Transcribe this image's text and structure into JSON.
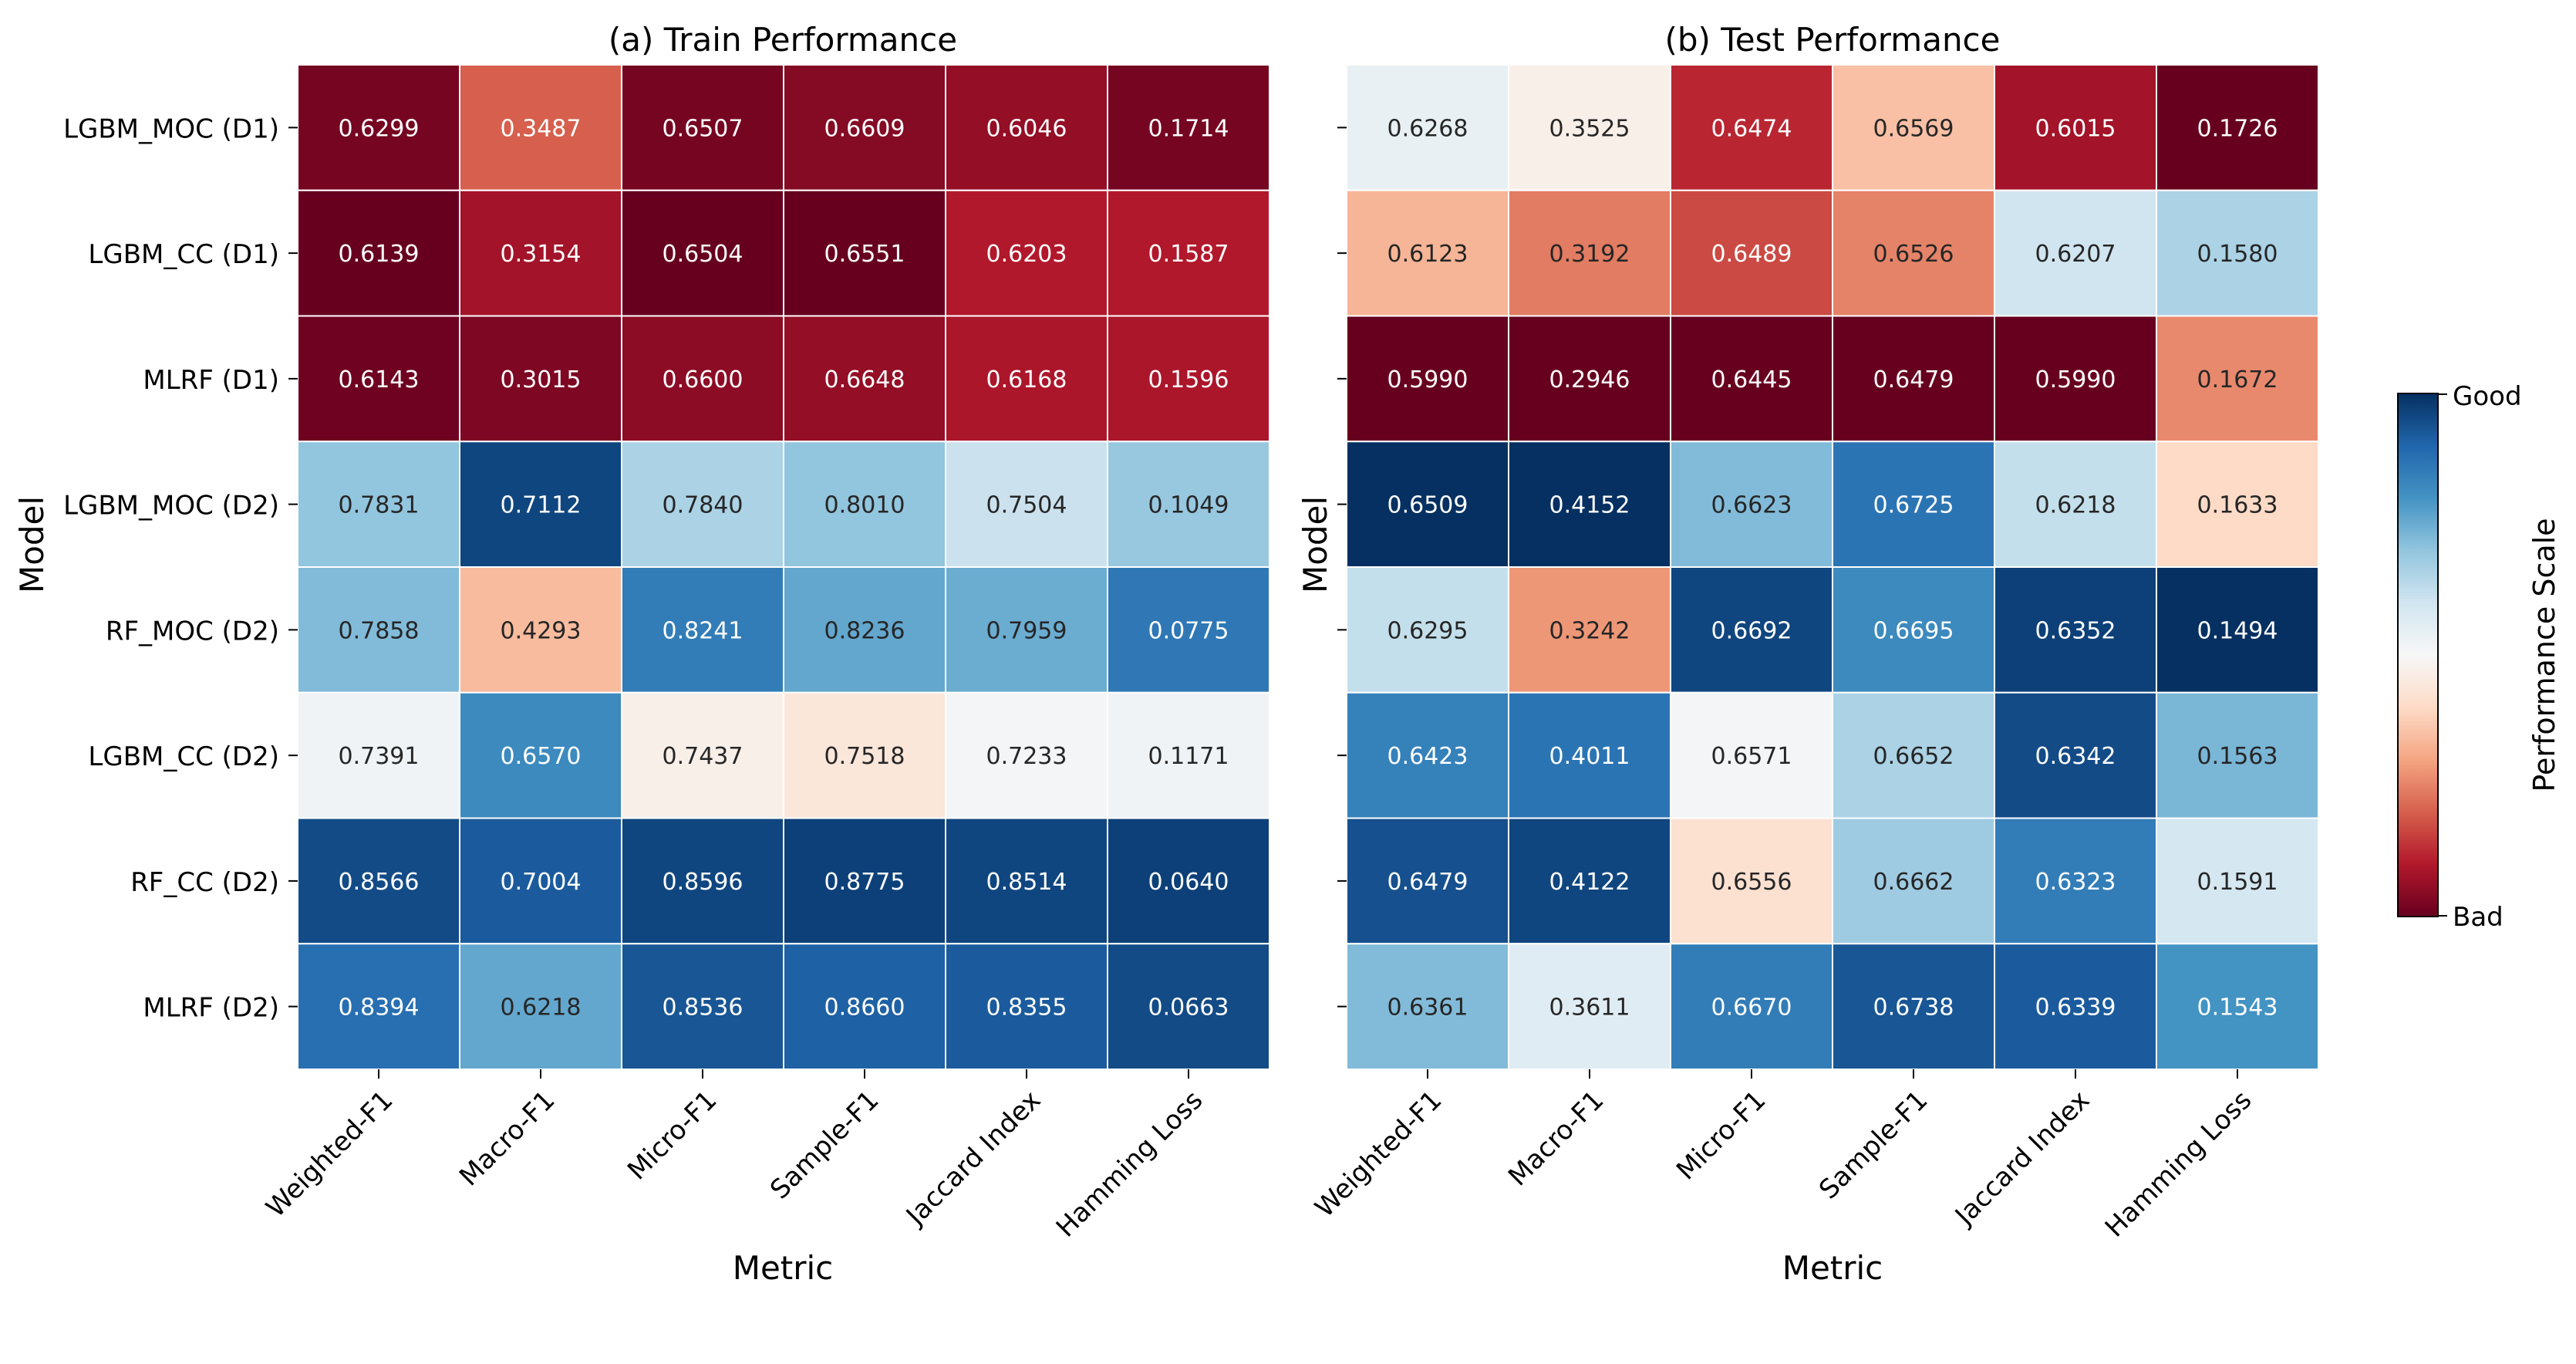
{
  "chart_data": [
    {
      "type": "heatmap",
      "title": "(a) Train Performance",
      "xlabel": "Metric",
      "ylabel": "Model",
      "columns": [
        "Weighted-F1",
        "Macro-F1",
        "Micro-F1",
        "Sample-F1",
        "Jaccard Index",
        "Hamming Loss"
      ],
      "rows": [
        "LGBM_MOC (D1)",
        "LGBM_CC (D1)",
        "MLRF (D1)",
        "LGBM_MOC (D2)",
        "RF_MOC (D2)",
        "LGBM_CC (D2)",
        "RF_CC (D2)",
        "MLRF (D2)"
      ],
      "values": [
        [
          0.6299,
          0.3487,
          0.6507,
          0.6609,
          0.6046,
          0.1714
        ],
        [
          0.6139,
          0.3154,
          0.6504,
          0.6551,
          0.6203,
          0.1587
        ],
        [
          0.6143,
          0.3015,
          0.66,
          0.6648,
          0.6168,
          0.1596
        ],
        [
          0.7831,
          0.7112,
          0.784,
          0.801,
          0.7504,
          0.1049
        ],
        [
          0.7858,
          0.4293,
          0.8241,
          0.8236,
          0.7959,
          0.0775
        ],
        [
          0.7391,
          0.657,
          0.7437,
          0.7518,
          0.7233,
          0.1171
        ],
        [
          0.8566,
          0.7004,
          0.8596,
          0.8775,
          0.8514,
          0.064
        ],
        [
          0.8394,
          0.6218,
          0.8536,
          0.866,
          0.8355,
          0.0663
        ]
      ],
      "labels": [
        [
          "0.6299",
          "0.3487",
          "0.6507",
          "0.6609",
          "0.6046",
          "0.1714"
        ],
        [
          "0.6139",
          "0.3154",
          "0.6504",
          "0.6551",
          "0.6203",
          "0.1587"
        ],
        [
          "0.6143",
          "0.3015",
          "0.6600",
          "0.6648",
          "0.6168",
          "0.1596"
        ],
        [
          "0.7831",
          "0.7112",
          "0.7840",
          "0.8010",
          "0.7504",
          "0.1049"
        ],
        [
          "0.7858",
          "0.4293",
          "0.8241",
          "0.8236",
          "0.7959",
          "0.0775"
        ],
        [
          "0.7391",
          "0.6570",
          "0.7437",
          "0.7518",
          "0.7233",
          "0.1171"
        ],
        [
          "0.8566",
          "0.7004",
          "0.8596",
          "0.8775",
          "0.8514",
          "0.0640"
        ],
        [
          "0.8394",
          "0.6218",
          "0.8536",
          "0.8660",
          "0.8355",
          "0.0663"
        ]
      ],
      "scores": [
        [
          0.02,
          0.2,
          0.02,
          0.04,
          0.06,
          0.02
        ],
        [
          0.0,
          0.08,
          0.0,
          0.0,
          0.1,
          0.1
        ],
        [
          0.01,
          0.03,
          0.05,
          0.06,
          0.09,
          0.09
        ],
        [
          0.7,
          0.96,
          0.66,
          0.7,
          0.61,
          0.69
        ],
        [
          0.72,
          0.34,
          0.85,
          0.76,
          0.75,
          0.86
        ],
        [
          0.52,
          0.82,
          0.47,
          0.44,
          0.51,
          0.52
        ],
        [
          0.95,
          0.92,
          0.96,
          0.97,
          0.96,
          0.97
        ],
        [
          0.88,
          0.76,
          0.93,
          0.91,
          0.92,
          0.95
        ]
      ]
    },
    {
      "type": "heatmap",
      "title": "(b) Test Performance",
      "xlabel": "Metric",
      "ylabel": "Model",
      "columns": [
        "Weighted-F1",
        "Macro-F1",
        "Micro-F1",
        "Sample-F1",
        "Jaccard Index",
        "Hamming Loss"
      ],
      "rows": [
        "LGBM_MOC (D1)",
        "LGBM_CC (D1)",
        "MLRF (D1)",
        "LGBM_MOC (D2)",
        "RF_MOC (D2)",
        "LGBM_CC (D2)",
        "RF_CC (D2)",
        "MLRF (D2)"
      ],
      "values": [
        [
          0.6268,
          0.3525,
          0.6474,
          0.6569,
          0.6015,
          0.1726
        ],
        [
          0.6123,
          0.3192,
          0.6489,
          0.6526,
          0.6207,
          0.158
        ],
        [
          0.599,
          0.2946,
          0.6445,
          0.6479,
          0.599,
          0.1672
        ],
        [
          0.6509,
          0.4152,
          0.6623,
          0.6725,
          0.6218,
          0.1633
        ],
        [
          0.6295,
          0.3242,
          0.6692,
          0.6695,
          0.6352,
          0.1494
        ],
        [
          0.6423,
          0.4011,
          0.6571,
          0.6652,
          0.6342,
          0.1563
        ],
        [
          0.6479,
          0.4122,
          0.6556,
          0.6662,
          0.6323,
          0.1591
        ],
        [
          0.6361,
          0.3611,
          0.667,
          0.6738,
          0.6339,
          0.1543
        ]
      ],
      "labels": [
        [
          "0.6268",
          "0.3525",
          "0.6474",
          "0.6569",
          "0.6015",
          "0.1726"
        ],
        [
          "0.6123",
          "0.3192",
          "0.6489",
          "0.6526",
          "0.6207",
          "0.1580"
        ],
        [
          "0.5990",
          "0.2946",
          "0.6445",
          "0.6479",
          "0.5990",
          "0.1672"
        ],
        [
          "0.6509",
          "0.4152",
          "0.6623",
          "0.6725",
          "0.6218",
          "0.1633"
        ],
        [
          "0.6295",
          "0.3242",
          "0.6692",
          "0.6695",
          "0.6352",
          "0.1494"
        ],
        [
          "0.6423",
          "0.4011",
          "0.6571",
          "0.6652",
          "0.6342",
          "0.1563"
        ],
        [
          "0.6479",
          "0.4122",
          "0.6556",
          "0.6662",
          "0.6323",
          "0.1591"
        ],
        [
          "0.6361",
          "0.3611",
          "0.6670",
          "0.6738",
          "0.6339",
          "0.1543"
        ]
      ],
      "scores": [
        [
          0.54,
          0.47,
          0.12,
          0.35,
          0.08,
          0.0
        ],
        [
          0.33,
          0.24,
          0.17,
          0.25,
          0.6,
          0.66
        ],
        [
          0.0,
          0.0,
          0.0,
          0.0,
          0.0,
          0.26
        ],
        [
          1.0,
          1.0,
          0.72,
          0.87,
          0.62,
          0.4
        ],
        [
          0.62,
          0.28,
          0.96,
          0.82,
          0.97,
          1.0
        ],
        [
          0.84,
          0.87,
          0.51,
          0.66,
          0.95,
          0.73
        ],
        [
          0.94,
          0.96,
          0.42,
          0.68,
          0.85,
          0.59
        ],
        [
          0.72,
          0.56,
          0.85,
          0.93,
          0.92,
          0.8
        ]
      ]
    }
  ],
  "colorbar": {
    "label": "Performance Scale",
    "top_label": "Good",
    "bottom_label": "Bad",
    "colormap": "RdBu",
    "stops": [
      "#67001f",
      "#b2182b",
      "#d6604d",
      "#f4a582",
      "#fddbc7",
      "#f7f7f7",
      "#d1e5f0",
      "#92c5de",
      "#4393c3",
      "#2166ac",
      "#053061"
    ]
  }
}
